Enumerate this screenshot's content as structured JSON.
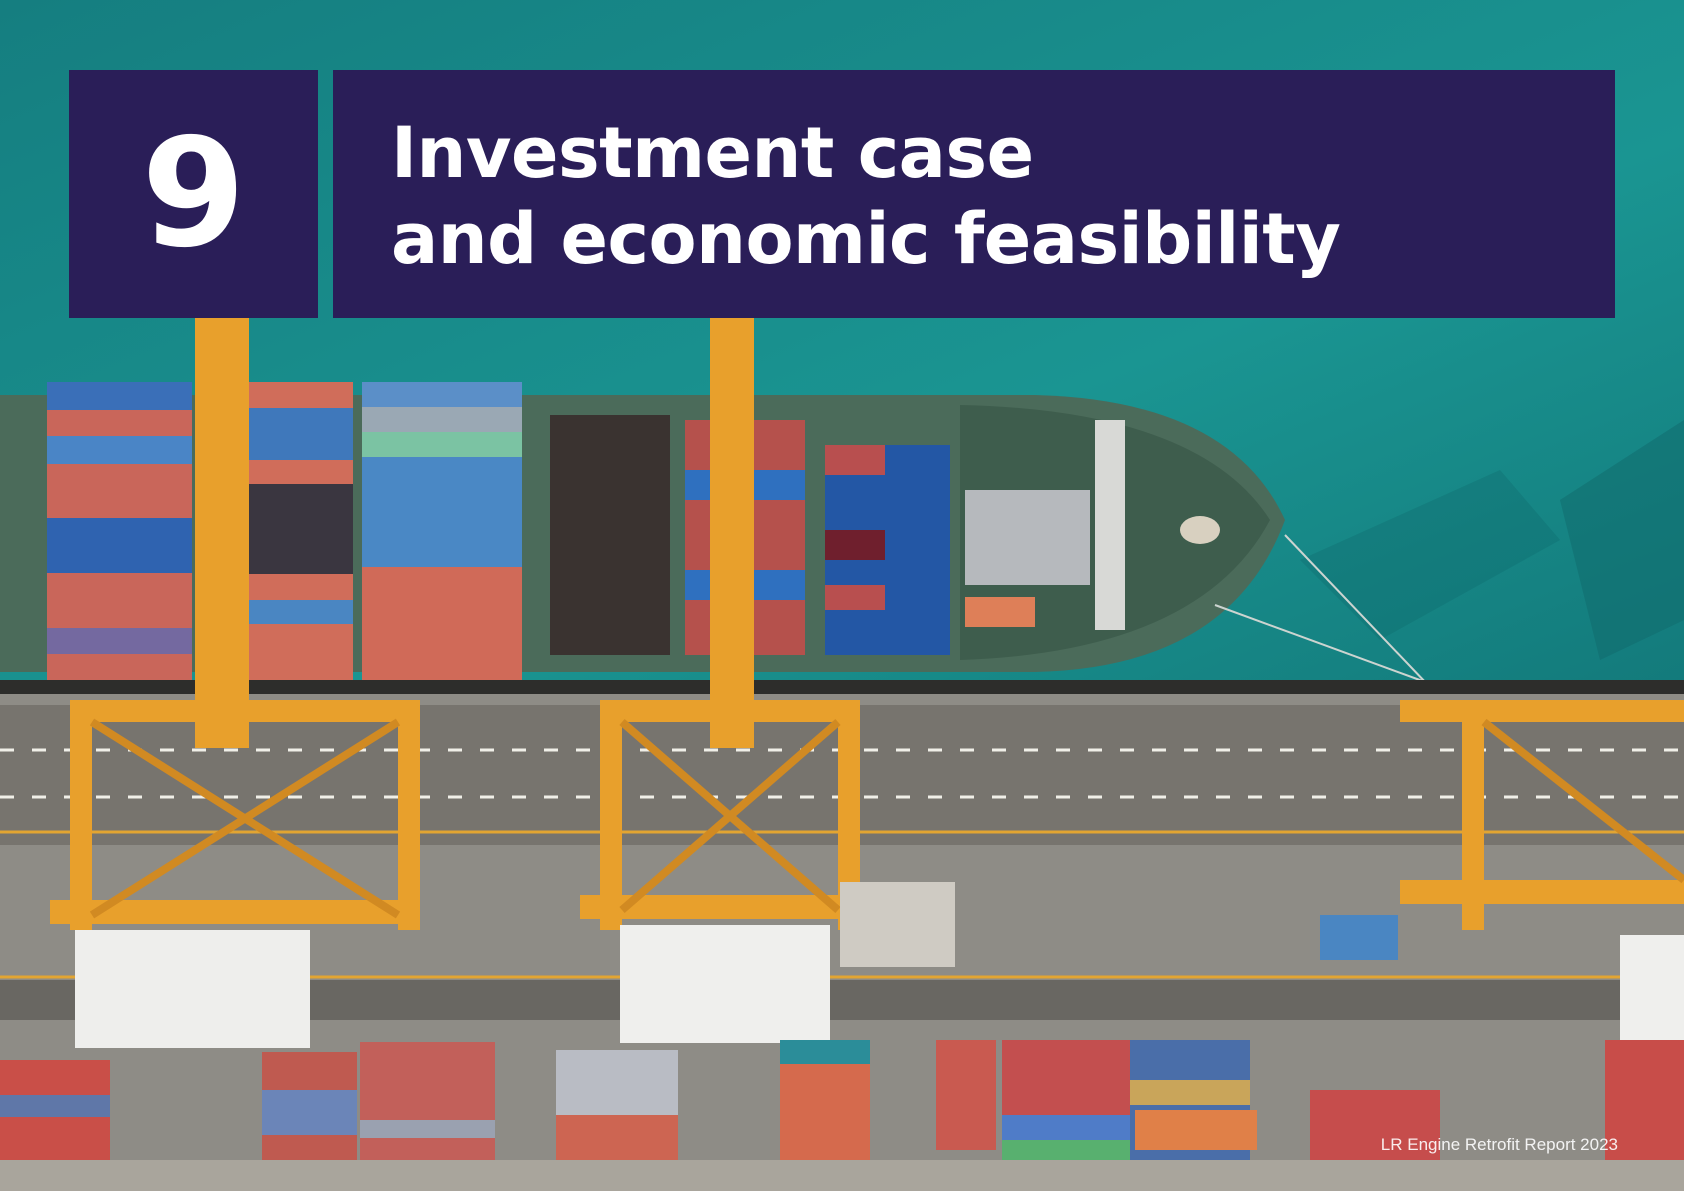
{
  "chapter": {
    "number": "9"
  },
  "title": {
    "line1": "Investment case",
    "line2": "and economic feasibility"
  },
  "footer": {
    "text": "LR Engine Retrofit Report 2023"
  },
  "colors": {
    "panel": "#2a1e58",
    "sea": "#1b8b89",
    "crane": "#e8a02c",
    "quay": "#8e8c86"
  }
}
